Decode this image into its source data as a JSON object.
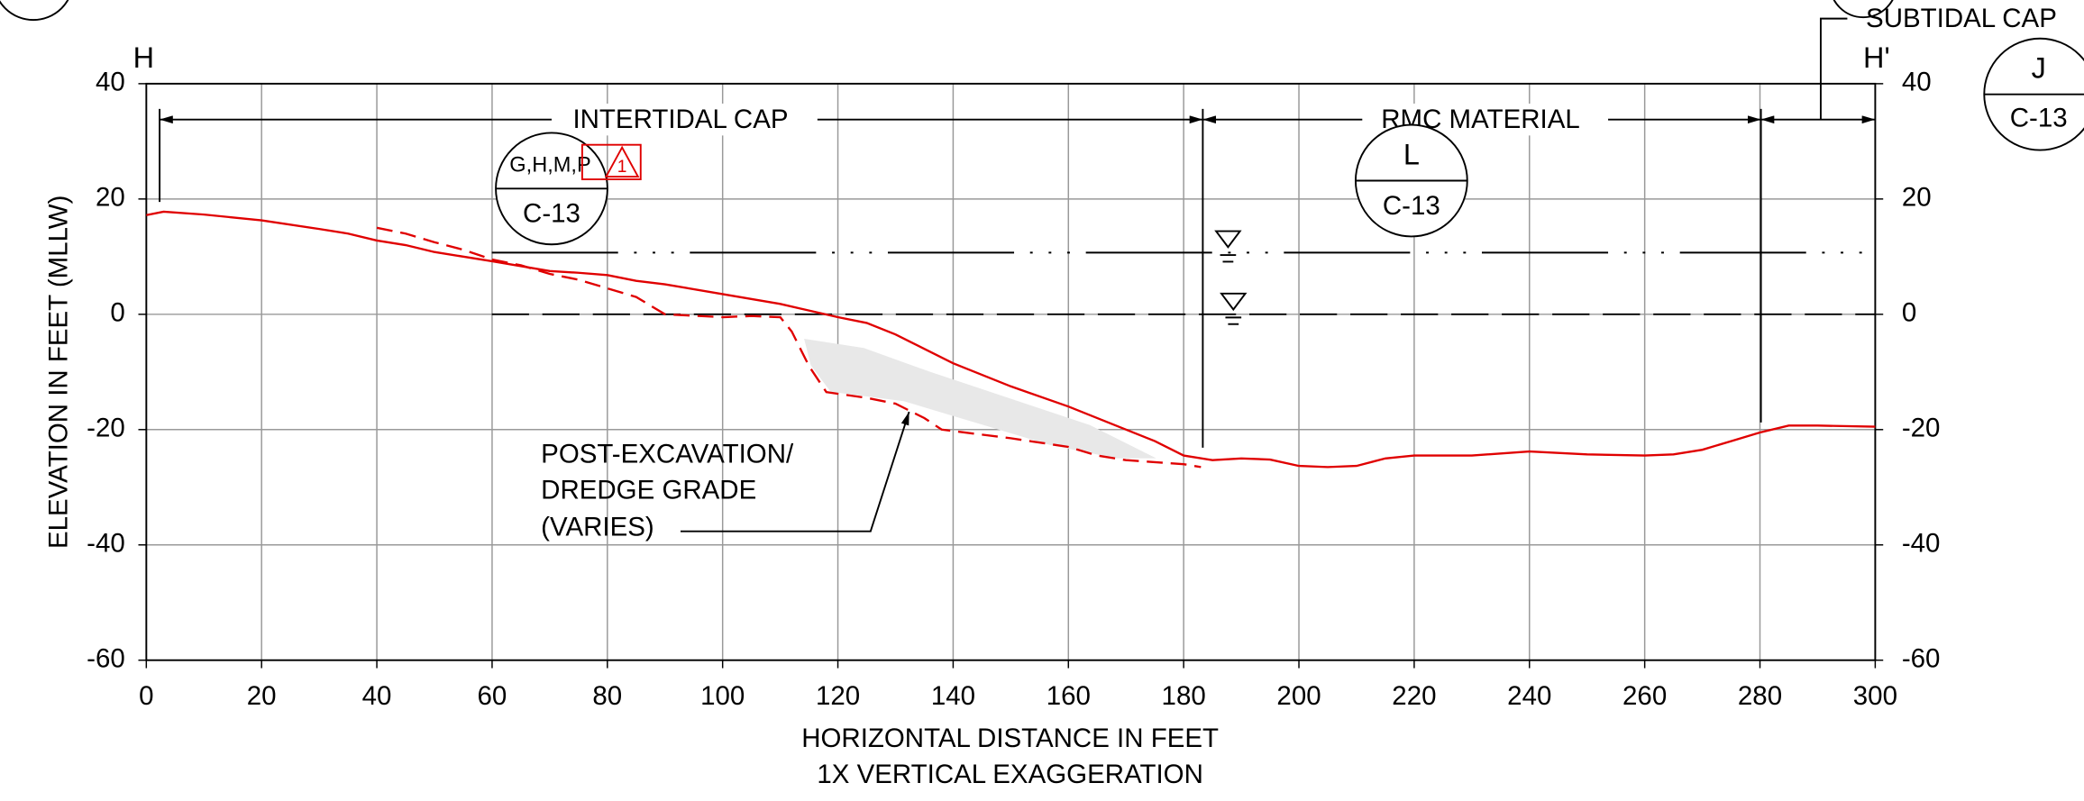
{
  "chart_data": {
    "type": "line",
    "left_label": "H",
    "right_label": "H'",
    "xlabel": [
      "HORIZONTAL DISTANCE IN FEET",
      "1X VERTICAL EXAGGERATION"
    ],
    "ylabel": "ELEVATION IN FEET (MLLW)",
    "xlim": [
      0,
      300
    ],
    "xticks": [
      0,
      20,
      40,
      60,
      80,
      100,
      120,
      140,
      160,
      180,
      200,
      220,
      240,
      260,
      280,
      300
    ],
    "ylim": [
      -60,
      40
    ],
    "yticks": [
      -60,
      -40,
      -20,
      0,
      20,
      40
    ],
    "y2lim": [
      -60,
      40
    ],
    "y2ticks": [
      -60,
      -40,
      -20,
      0,
      20,
      40
    ],
    "grid": true,
    "series": [
      {
        "color": "#e00000",
        "style": "solid",
        "x": [
          0,
          3,
          10,
          20,
          30,
          35,
          40,
          45,
          50,
          55,
          60,
          70,
          75,
          80,
          85,
          90,
          100,
          110,
          120,
          125,
          130,
          135,
          140,
          150,
          160,
          170,
          175,
          180,
          185,
          190,
          195,
          200,
          205,
          210,
          215,
          220,
          230,
          240,
          250,
          260,
          265,
          270,
          275,
          280,
          285,
          290,
          300
        ],
        "values": [
          17.2,
          17.8,
          17.3,
          16.3,
          14.8,
          14,
          12.8,
          12,
          10.8,
          10,
          9.2,
          7.5,
          7.2,
          6.8,
          5.8,
          5.2,
          3.5,
          1.8,
          -0.5,
          -1.5,
          -3.5,
          -6,
          -8.5,
          -12.5,
          -16,
          -20,
          -22,
          -24.5,
          -25.3,
          -25,
          -25.2,
          -26.3,
          -26.5,
          -26.3,
          -25,
          -24.5,
          -24.5,
          -23.8,
          -24.3,
          -24.5,
          -24.3,
          -23.5,
          -22,
          -20.5,
          -19.3,
          -19.3,
          -19.5
        ]
      },
      {
        "color": "#e00000",
        "style": "dashed",
        "x": [
          40,
          45,
          50,
          55,
          60,
          65,
          70,
          75,
          80,
          85,
          90,
          100,
          105,
          110,
          112,
          115,
          118,
          125,
          130,
          135,
          138,
          150,
          160,
          165,
          170,
          180,
          183
        ],
        "values": [
          15,
          14,
          12.5,
          11.2,
          9.5,
          8.5,
          7,
          6,
          4.5,
          3,
          0,
          -0.5,
          -0.3,
          -0.5,
          -3,
          -9,
          -13.5,
          -14.5,
          -15.5,
          -18,
          -20,
          -21.5,
          -23,
          -24.5,
          -25.3,
          -26,
          -26.5
        ]
      }
    ],
    "reference_lines": [
      {
        "value": 10.7,
        "style": "dash-dot"
      },
      {
        "value": 0,
        "style": "dashed"
      }
    ],
    "zones": [
      "INTERTIDAL CAP",
      "RMC MATERIAL",
      "SUBTIDAL CAP"
    ],
    "callouts": [
      {
        "top": "G,H,M,P",
        "bottom": "C-13",
        "revision": "1"
      },
      {
        "top": "L",
        "bottom": "C-13"
      },
      {
        "top": "J",
        "bottom": "C-13"
      }
    ],
    "annotation": [
      "POST-EXCAVATION/",
      "DREDGE GRADE",
      "(VARIES)"
    ]
  }
}
